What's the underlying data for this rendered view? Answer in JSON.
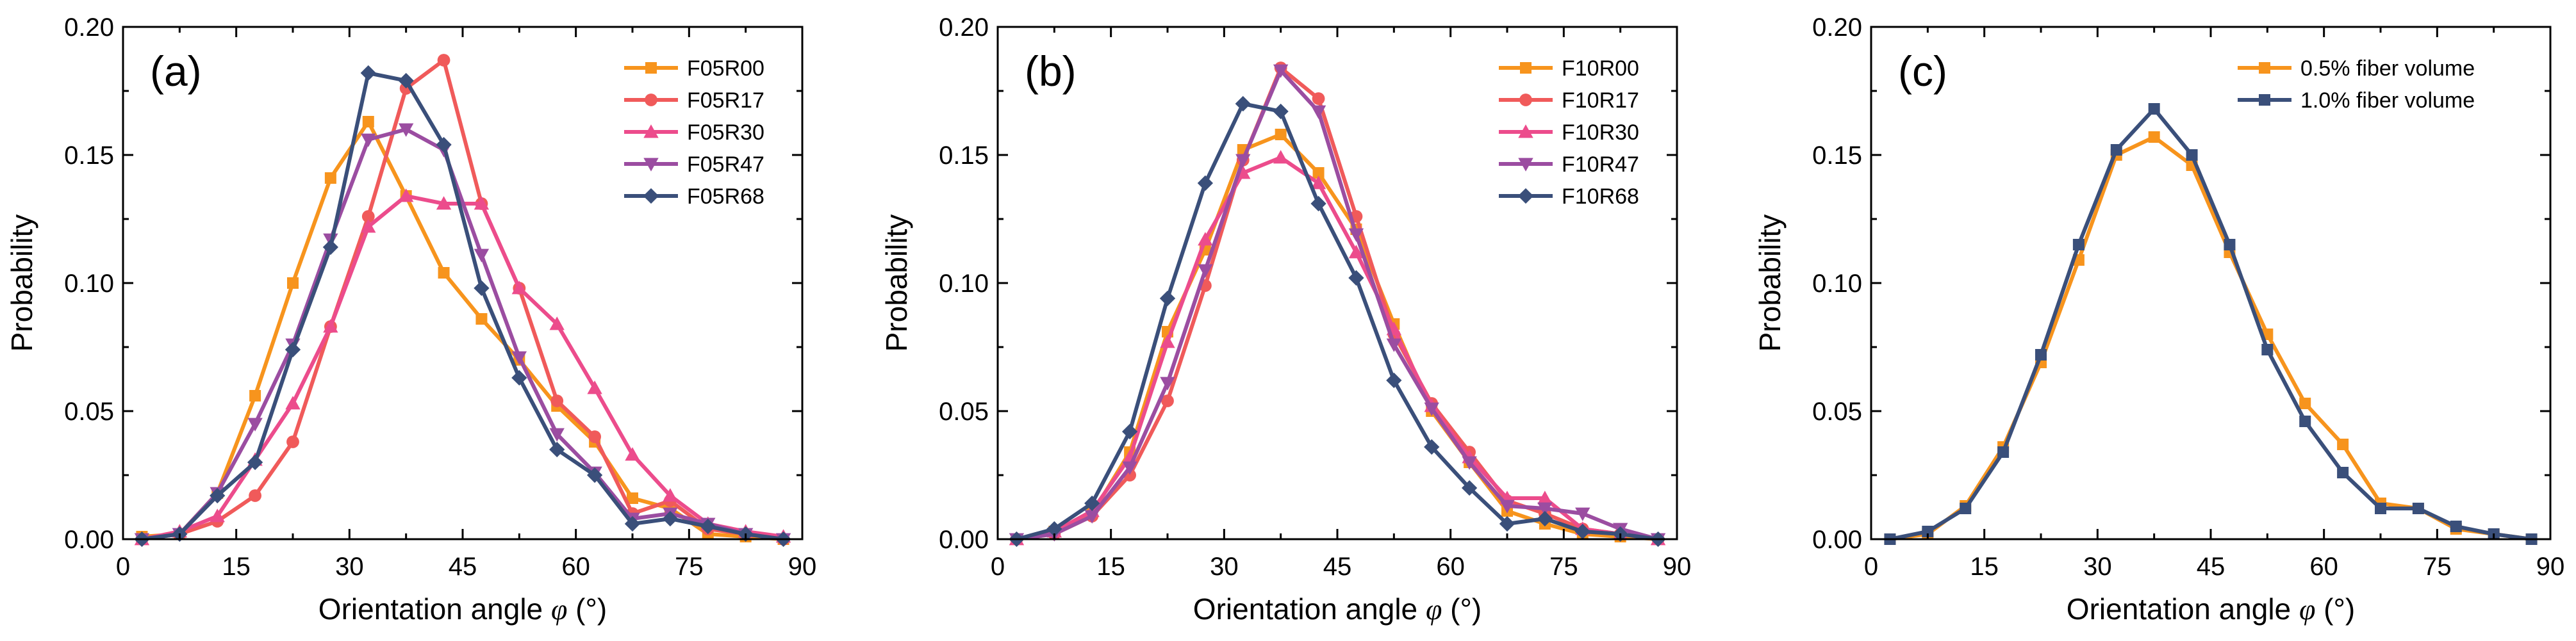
{
  "chart_data": [
    {
      "type": "line",
      "panel_label": "(a)",
      "xlabel": "Orientation angle",
      "xlabel_symbol": "φ",
      "xlabel_unit": " (°)",
      "ylabel": "Probability",
      "xlim": [
        0,
        90
      ],
      "ylim": [
        0,
        0.2
      ],
      "xticks": [
        0,
        15,
        30,
        45,
        60,
        75,
        90
      ],
      "yticks": [
        0,
        0.05,
        0.1,
        0.15,
        0.2
      ],
      "ytick_labels": [
        "0.00",
        "0.05",
        "0.10",
        "0.15",
        "0.20"
      ],
      "legend_position": "top-right",
      "x": [
        2.5,
        7.5,
        12.5,
        17.5,
        22.5,
        27.5,
        32.5,
        37.5,
        42.5,
        47.5,
        52.5,
        57.5,
        62.5,
        67.5,
        72.5,
        77.5,
        82.5,
        87.5
      ],
      "series": [
        {
          "name": "F05R00",
          "color": "#F7941D",
          "marker": "square",
          "values": [
            0.001,
            0.002,
            0.018,
            0.056,
            0.1,
            0.141,
            0.163,
            0.134,
            0.104,
            0.086,
            0.07,
            0.052,
            0.038,
            0.016,
            0.012,
            0.002,
            0.001,
            0.0
          ]
        },
        {
          "name": "F05R17",
          "color": "#F05A5A",
          "marker": "circle",
          "values": [
            0.0,
            0.002,
            0.007,
            0.017,
            0.038,
            0.083,
            0.126,
            0.176,
            0.187,
            0.131,
            0.098,
            0.054,
            0.04,
            0.01,
            0.015,
            0.004,
            0.002,
            0.0
          ]
        },
        {
          "name": "F05R30",
          "color": "#EC4C8C",
          "marker": "triangle-up",
          "values": [
            0.0,
            0.003,
            0.009,
            0.031,
            0.053,
            0.083,
            0.122,
            0.134,
            0.131,
            0.131,
            0.098,
            0.084,
            0.059,
            0.033,
            0.017,
            0.006,
            0.003,
            0.001
          ]
        },
        {
          "name": "F05R47",
          "color": "#9B4DA1",
          "marker": "triangle-down",
          "values": [
            0.0,
            0.002,
            0.018,
            0.045,
            0.076,
            0.117,
            0.156,
            0.16,
            0.152,
            0.111,
            0.071,
            0.041,
            0.026,
            0.008,
            0.01,
            0.006,
            0.002,
            0.0
          ]
        },
        {
          "name": "F05R68",
          "color": "#3A4F7A",
          "marker": "diamond",
          "values": [
            0.0,
            0.002,
            0.017,
            0.03,
            0.074,
            0.114,
            0.182,
            0.179,
            0.154,
            0.098,
            0.063,
            0.035,
            0.025,
            0.006,
            0.008,
            0.005,
            0.002,
            0.0
          ]
        }
      ]
    },
    {
      "type": "line",
      "panel_label": "(b)",
      "xlabel": "Orientation angle",
      "xlabel_symbol": "φ",
      "xlabel_unit": " (°)",
      "ylabel": "Probability",
      "xlim": [
        0,
        90
      ],
      "ylim": [
        0,
        0.2
      ],
      "xticks": [
        0,
        15,
        30,
        45,
        60,
        75,
        90
      ],
      "yticks": [
        0,
        0.05,
        0.1,
        0.15,
        0.2
      ],
      "ytick_labels": [
        "0.00",
        "0.05",
        "0.10",
        "0.15",
        "0.20"
      ],
      "legend_position": "top-right",
      "x": [
        2.5,
        7.5,
        12.5,
        17.5,
        22.5,
        27.5,
        32.5,
        37.5,
        42.5,
        47.5,
        52.5,
        57.5,
        62.5,
        67.5,
        72.5,
        77.5,
        82.5,
        87.5
      ],
      "series": [
        {
          "name": "F10R00",
          "color": "#F7941D",
          "marker": "square",
          "values": [
            0.0,
            0.003,
            0.01,
            0.034,
            0.081,
            0.113,
            0.152,
            0.158,
            0.143,
            0.121,
            0.084,
            0.05,
            0.03,
            0.011,
            0.006,
            0.002,
            0.001,
            0.0
          ]
        },
        {
          "name": "F10R17",
          "color": "#F05A5A",
          "marker": "circle",
          "values": [
            0.0,
            0.002,
            0.009,
            0.025,
            0.054,
            0.099,
            0.148,
            0.184,
            0.172,
            0.126,
            0.08,
            0.053,
            0.034,
            0.015,
            0.01,
            0.004,
            0.002,
            0.0
          ]
        },
        {
          "name": "F10R30",
          "color": "#EC4C8C",
          "marker": "triangle-up",
          "values": [
            0.0,
            0.003,
            0.011,
            0.032,
            0.077,
            0.117,
            0.143,
            0.149,
            0.139,
            0.112,
            0.082,
            0.052,
            0.032,
            0.016,
            0.016,
            0.004,
            0.002,
            0.0
          ]
        },
        {
          "name": "F10R47",
          "color": "#9B4DA1",
          "marker": "triangle-down",
          "values": [
            0.0,
            0.002,
            0.009,
            0.028,
            0.061,
            0.105,
            0.148,
            0.183,
            0.167,
            0.119,
            0.076,
            0.051,
            0.03,
            0.013,
            0.012,
            0.01,
            0.004,
            0.0
          ]
        },
        {
          "name": "F10R68",
          "color": "#3A4F7A",
          "marker": "diamond",
          "values": [
            0.0,
            0.004,
            0.014,
            0.042,
            0.094,
            0.139,
            0.17,
            0.167,
            0.131,
            0.102,
            0.062,
            0.036,
            0.02,
            0.006,
            0.008,
            0.003,
            0.002,
            0.0
          ]
        }
      ]
    },
    {
      "type": "line",
      "panel_label": "(c)",
      "xlabel": "Orientation angle",
      "xlabel_symbol": "φ",
      "xlabel_unit": " (°)",
      "ylabel": "Probability",
      "xlim": [
        0,
        90
      ],
      "ylim": [
        0,
        0.2
      ],
      "xticks": [
        0,
        15,
        30,
        45,
        60,
        75,
        90
      ],
      "yticks": [
        0,
        0.05,
        0.1,
        0.15,
        0.2
      ],
      "ytick_labels": [
        "0.00",
        "0.05",
        "0.10",
        "0.15",
        "0.20"
      ],
      "legend_position": "top-right",
      "x": [
        2.5,
        7.5,
        12.5,
        17.5,
        22.5,
        27.5,
        32.5,
        37.5,
        42.5,
        47.5,
        52.5,
        57.5,
        62.5,
        67.5,
        72.5,
        77.5,
        82.5,
        87.5
      ],
      "series": [
        {
          "name": "0.5% fiber volume",
          "color": "#F7941D",
          "marker": "square",
          "values": [
            0.0,
            0.002,
            0.013,
            0.036,
            0.069,
            0.109,
            0.15,
            0.157,
            0.146,
            0.112,
            0.08,
            0.053,
            0.037,
            0.014,
            0.012,
            0.004,
            0.002,
            0.0
          ]
        },
        {
          "name": "1.0% fiber volume",
          "color": "#3A4F7A",
          "marker": "square",
          "values": [
            0.0,
            0.003,
            0.012,
            0.034,
            0.072,
            0.115,
            0.152,
            0.168,
            0.15,
            0.115,
            0.074,
            0.046,
            0.026,
            0.012,
            0.012,
            0.005,
            0.002,
            0.0
          ]
        }
      ]
    }
  ]
}
